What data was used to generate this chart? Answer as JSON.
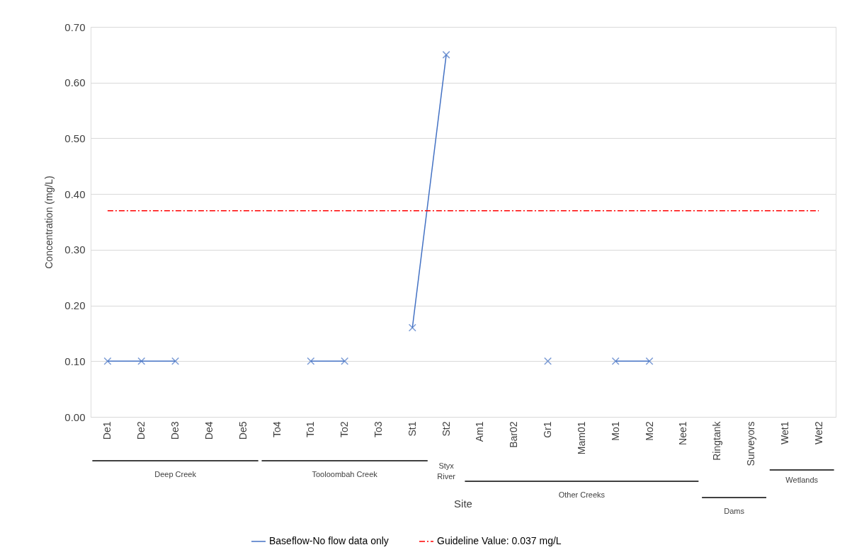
{
  "chart_data": {
    "type": "line",
    "xlabel": "Site",
    "ylabel": "Concentration (mg/L)",
    "categories": [
      "De1",
      "De2",
      "De3",
      "De4",
      "De5",
      "To4",
      "To1",
      "To2",
      "To3",
      "St1",
      "St2",
      "Am1",
      "Bar02",
      "Gr1",
      "Mam01",
      "Mo1",
      "Mo2",
      "Nee1",
      "Ringtank",
      "Surveyors",
      "Wet1",
      "Wet2"
    ],
    "series": [
      {
        "name": "Baseflow-No flow data only",
        "color": "#4472c4",
        "values": [
          0.1,
          0.1,
          0.1,
          null,
          null,
          null,
          0.1,
          0.1,
          null,
          0.16,
          0.65,
          null,
          null,
          0.1,
          null,
          0.1,
          0.1,
          null,
          null,
          null,
          null,
          null
        ]
      },
      {
        "name": "Guideline Value: 0.037 mg/L",
        "color": "#ff0000",
        "line_style": "dashed",
        "marker": "none",
        "values": [
          0.37,
          0.37,
          0.37,
          0.37,
          0.37,
          0.37,
          0.37,
          0.37,
          0.37,
          0.37,
          0.37,
          0.37,
          0.37,
          0.37,
          0.37,
          0.37,
          0.37,
          0.37,
          0.37,
          0.37,
          0.37,
          0.37
        ]
      }
    ],
    "ylim": [
      0,
      0.7
    ],
    "yticks": [
      {
        "value": 0,
        "label": "0.00"
      },
      {
        "value": 0.1,
        "label": "0.10"
      },
      {
        "value": 0.2,
        "label": "0.20"
      },
      {
        "value": 0.3,
        "label": "0.30"
      },
      {
        "value": 0.4,
        "label": "0.40"
      },
      {
        "value": 0.5,
        "label": "0.50"
      },
      {
        "value": 0.6,
        "label": "0.60"
      },
      {
        "value": 0.7,
        "label": "0.70"
      }
    ],
    "annotations": [
      "Deep Creek",
      "Tooloombah Creek",
      "Styx River",
      "Other Creeks",
      "Dams",
      "Wetlands"
    ],
    "grid": "y",
    "legend": "bottom",
    "marker": "cross",
    "line_style": "solid"
  }
}
